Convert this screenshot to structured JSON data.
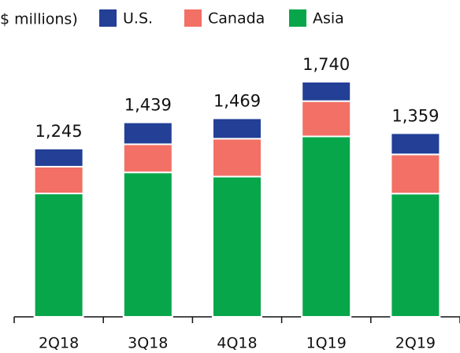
{
  "chart_data": {
    "type": "stacked_bar",
    "title": "$ millions)",
    "categories": [
      "2Q18",
      "3Q18",
      "4Q18",
      "1Q19",
      "2Q19"
    ],
    "series": [
      {
        "name": "U.S.",
        "color": "#233f96",
        "values": [
          134,
          162,
          151,
          144,
          157
        ]
      },
      {
        "name": "Canada",
        "color": "#f27065",
        "values": [
          198,
          208,
          280,
          261,
          290
        ]
      },
      {
        "name": "Asia",
        "color": "#08a64a",
        "values": [
          913,
          1069,
          1038,
          1335,
          912
        ]
      }
    ],
    "totals": [
      1245,
      1439,
      1469,
      1740,
      1359
    ],
    "totals_labels": [
      "1,245",
      "1,439",
      "1,469",
      "1,740",
      "1,359"
    ]
  }
}
